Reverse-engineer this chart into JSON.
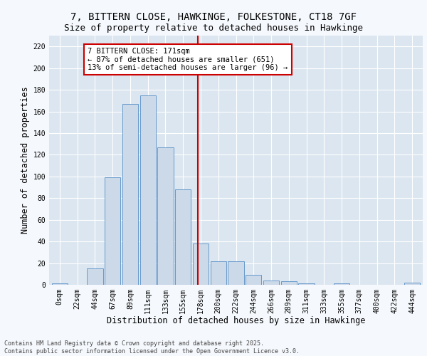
{
  "title_line1": "7, BITTERN CLOSE, HAWKINGE, FOLKESTONE, CT18 7GF",
  "title_line2": "Size of property relative to detached houses in Hawkinge",
  "xlabel": "Distribution of detached houses by size in Hawkinge",
  "ylabel": "Number of detached properties",
  "bar_color": "#ccd9e8",
  "bar_edge_color": "#6699cc",
  "background_color": "#dce6f0",
  "fig_background_color": "#f5f8fc",
  "categories": [
    "0sqm",
    "22sqm",
    "44sqm",
    "67sqm",
    "89sqm",
    "111sqm",
    "133sqm",
    "155sqm",
    "178sqm",
    "200sqm",
    "222sqm",
    "244sqm",
    "266sqm",
    "289sqm",
    "311sqm",
    "333sqm",
    "355sqm",
    "377sqm",
    "400sqm",
    "422sqm",
    "444sqm"
  ],
  "values": [
    1,
    0,
    15,
    99,
    167,
    175,
    127,
    88,
    38,
    22,
    22,
    9,
    4,
    3,
    1,
    0,
    1,
    0,
    0,
    0,
    2
  ],
  "vline_x": 7.82,
  "vline_color": "#cc0000",
  "annotation_text": "7 BITTERN CLOSE: 171sqm\n← 87% of detached houses are smaller (651)\n13% of semi-detached houses are larger (96) →",
  "annotation_box_color": "#ffffff",
  "annotation_border_color": "#cc0000",
  "footer_line1": "Contains HM Land Registry data © Crown copyright and database right 2025.",
  "footer_line2": "Contains public sector information licensed under the Open Government Licence v3.0.",
  "ylim": [
    0,
    230
  ],
  "yticks": [
    0,
    20,
    40,
    60,
    80,
    100,
    120,
    140,
    160,
    180,
    200,
    220
  ],
  "title_fontsize": 10,
  "subtitle_fontsize": 9,
  "tick_fontsize": 7,
  "label_fontsize": 8.5,
  "annotation_fontsize": 7.5,
  "footer_fontsize": 6
}
